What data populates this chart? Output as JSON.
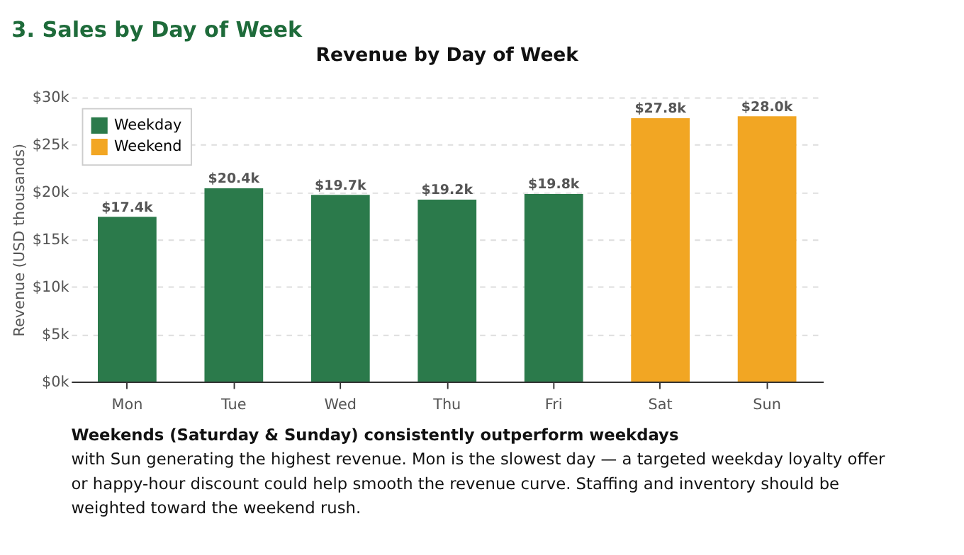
{
  "chart_data": {
    "type": "bar",
    "title": "3. Sales by Day of Week",
    "subtitle": "Revenue by Day of Week",
    "ylabel": "Revenue (USD thousands)",
    "categories": [
      "Mon",
      "Tue",
      "Wed",
      "Thu",
      "Fri",
      "Sat",
      "Sun"
    ],
    "series": [
      {
        "name": "Weekday",
        "color": "#2b7a4b",
        "values": [
          17.4,
          20.4,
          19.7,
          19.2,
          19.8,
          null,
          null
        ],
        "value_labels": [
          "$17.4k",
          "$20.4k",
          "$19.7k",
          "$19.2k",
          "$19.8k",
          null,
          null
        ]
      },
      {
        "name": "Weekend",
        "color": "#f2a623",
        "values": [
          null,
          null,
          null,
          null,
          null,
          27.8,
          28.0
        ],
        "value_labels": [
          null,
          null,
          null,
          null,
          null,
          "$27.8k",
          "$28.0k"
        ]
      }
    ],
    "ylim": [
      0,
      30
    ],
    "yticks": [
      {
        "value": 0,
        "label": "$0k"
      },
      {
        "value": 5,
        "label": "$5k"
      },
      {
        "value": 10,
        "label": "$10k"
      },
      {
        "value": 15,
        "label": "$15k"
      },
      {
        "value": 20,
        "label": "$20k"
      },
      {
        "value": 25,
        "label": "$25k"
      },
      {
        "value": 30,
        "label": "$30k"
      }
    ],
    "grid": "y",
    "legend": "top left",
    "annotations": [
      "Weekends (Saturday & Sunday) consistently outperform weekdays",
      "with Sun generating the highest revenue. Mon is the slowest day — a targeted weekday loyalty offer or happy-hour discount could help smooth the revenue curve. Staffing and inventory should be weighted toward the weekend rush."
    ]
  }
}
